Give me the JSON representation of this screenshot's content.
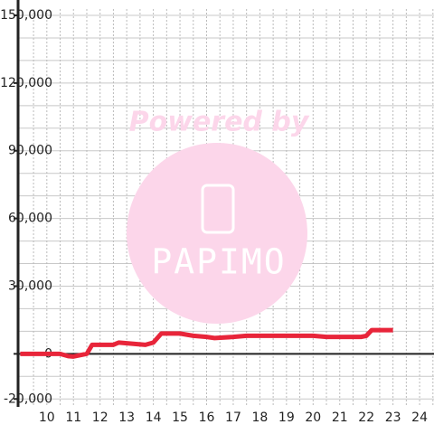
{
  "chart_data": {
    "type": "line",
    "x": [
      9,
      10.5,
      10.8,
      11,
      11.5,
      11.7,
      12.5,
      12.7,
      13.2,
      13.7,
      14,
      14.3,
      15,
      15.5,
      16,
      16.3,
      17,
      17.5,
      20,
      20.5,
      21.8,
      22,
      22.2,
      23
    ],
    "series": [
      {
        "color": "#e8253a",
        "values": [
          0,
          0,
          -1000,
          -1200,
          0,
          4000,
          4000,
          5000,
          4500,
          4000,
          5000,
          9000,
          9000,
          8000,
          7500,
          7000,
          7500,
          8000,
          8000,
          7500,
          7500,
          8000,
          10500,
          10500
        ]
      }
    ],
    "xlim": [
      8.92,
      24.54
    ],
    "xticks": [
      10,
      11,
      12,
      13,
      14,
      15,
      16,
      17,
      18,
      19,
      20,
      21,
      22,
      23,
      24
    ],
    "x_minor_ticks": [
      9.5,
      10.5,
      11.5,
      12.5,
      13.5,
      14.5,
      15.5,
      16.5,
      17.5,
      18.5,
      19.5,
      20.5,
      21.5,
      22.5,
      23.5,
      24.5
    ],
    "ylim": [
      -23500,
      152800
    ],
    "yticks": [
      {
        "value": -20000,
        "label": "-20,000"
      },
      0,
      {
        "value": 30000,
        "label": "30,000"
      },
      {
        "value": 60000,
        "label": "60,000"
      },
      {
        "value": 90000,
        "label": "90,000"
      },
      {
        "value": 120000,
        "label": "120,000"
      },
      {
        "value": 150000,
        "label": "150,000"
      }
    ],
    "y_minor_ticks": [
      -10000,
      10000,
      20000,
      40000,
      50000,
      70000,
      80000,
      100000,
      110000,
      130000,
      140000
    ],
    "grid": true,
    "watermark": {
      "text": "Powered by",
      "logo": "PAPIMO"
    }
  }
}
